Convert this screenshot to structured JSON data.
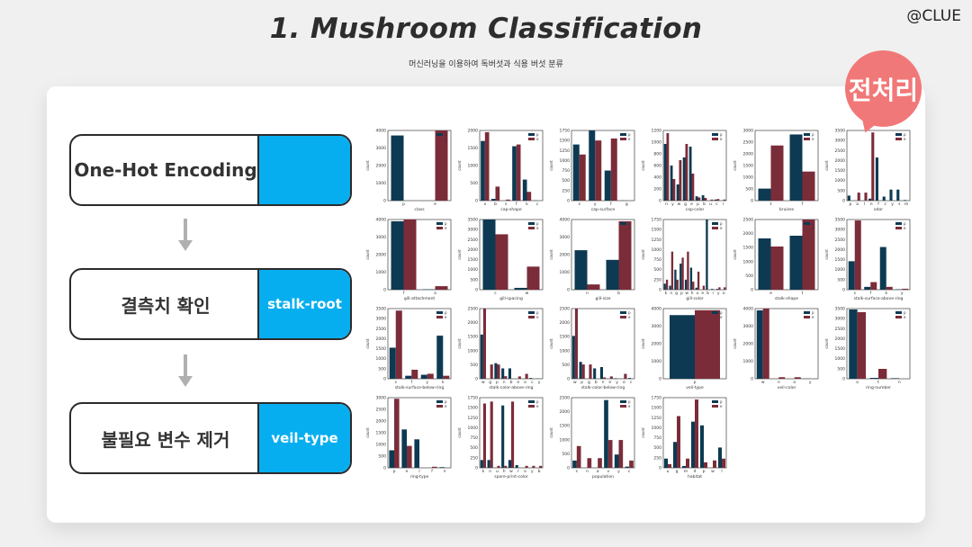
{
  "header": {
    "title": "1.  Mushroom Classification",
    "subtitle": "머신러닝을 이용하여 독버섯과 식용 버섯 분류",
    "brand": "@CLUE"
  },
  "badge": {
    "label": "전처리",
    "color": "#f17878"
  },
  "steps": [
    {
      "label": "One-Hot Encoding",
      "tag": ""
    },
    {
      "label": "결측치 확인",
      "tag": "stalk-root"
    },
    {
      "label": "불필요 변수 제거",
      "tag": "veil-type"
    }
  ],
  "colors": {
    "poisonous": "#0d3a52",
    "edible": "#7b2c39",
    "tag_bg": "#06aeef"
  },
  "legend": {
    "p": "p",
    "e": "e"
  },
  "count_label": "count",
  "plots": [
    {
      "x": "class",
      "cats": [
        "p",
        "e"
      ],
      "p": [
        3900,
        0
      ],
      "e": [
        0,
        4200
      ],
      "max": 4200,
      "yt": [
        "4000",
        "3000",
        "2000",
        "1000",
        "0"
      ]
    },
    {
      "x": "cap-shape",
      "cats": [
        "x",
        "b",
        "s",
        "f",
        "k",
        "c"
      ],
      "p": [
        1700,
        50,
        0,
        1550,
        600,
        5
      ],
      "e": [
        1950,
        400,
        30,
        1600,
        250,
        0
      ],
      "max": 2000,
      "yt": [
        "2000",
        "1500",
        "1000",
        "500",
        "0"
      ]
    },
    {
      "x": "cap-surface",
      "cats": [
        "s",
        "y",
        "f",
        "g"
      ],
      "p": [
        1400,
        1750,
        750,
        4
      ],
      "e": [
        1150,
        1500,
        1550,
        0
      ],
      "max": 1750,
      "yt": [
        "1750",
        "1500",
        "1250",
        "1000",
        "750",
        "500",
        "250",
        "0"
      ]
    },
    {
      "x": "cap-color",
      "cats": [
        "n",
        "y",
        "w",
        "g",
        "e",
        "p",
        "b",
        "u",
        "c",
        "r"
      ],
      "p": [
        1050,
        650,
        300,
        800,
        1000,
        80,
        100,
        0,
        20,
        0
      ],
      "e": [
        1250,
        400,
        750,
        1050,
        500,
        60,
        50,
        20,
        30,
        20
      ],
      "max": 1300,
      "yt": [
        "1200",
        "1000",
        "800",
        "600",
        "400",
        "200",
        "0"
      ]
    },
    {
      "x": "bruises",
      "cats": [
        "t",
        "f"
      ],
      "p": [
        600,
        3300
      ],
      "e": [
        2750,
        1450
      ],
      "max": 3500,
      "yt": [
        "3000",
        "2500",
        "2000",
        "1500",
        "1000",
        "500",
        "0"
      ]
    },
    {
      "x": "odor",
      "cats": [
        "p",
        "a",
        "l",
        "n",
        "f",
        "c",
        "y",
        "s",
        "m"
      ],
      "p": [
        250,
        0,
        0,
        100,
        2150,
        200,
        550,
        550,
        30
      ],
      "e": [
        0,
        400,
        400,
        3400,
        0,
        0,
        0,
        0,
        0
      ],
      "max": 3500,
      "yt": [
        "3500",
        "3000",
        "2500",
        "2000",
        "1500",
        "1000",
        "500",
        "0"
      ]
    },
    {
      "x": "gill-attachment",
      "cats": [
        "f",
        "a"
      ],
      "p": [
        3900,
        20
      ],
      "e": [
        4000,
        200
      ],
      "max": 4000,
      "yt": [
        "4000",
        "3000",
        "2000",
        "1000",
        "0"
      ]
    },
    {
      "x": "gill-spacing",
      "cats": [
        "c",
        "w"
      ],
      "p": [
        3800,
        100
      ],
      "e": [
        3000,
        1250
      ],
      "max": 3800,
      "yt": [
        "3500",
        "3000",
        "2500",
        "2000",
        "1500",
        "1000",
        "500",
        "0"
      ]
    },
    {
      "x": "gill-size",
      "cats": [
        "n",
        "b"
      ],
      "p": [
        2250,
        1700
      ],
      "e": [
        300,
        3900
      ],
      "max": 4000,
      "yt": [
        "4000",
        "3000",
        "2000",
        "1000",
        "0"
      ]
    },
    {
      "x": "gill-color",
      "cats": [
        "k",
        "n",
        "g",
        "p",
        "w",
        "h",
        "u",
        "e",
        "b",
        "r",
        "y",
        "o"
      ],
      "p": [
        150,
        100,
        500,
        650,
        250,
        550,
        50,
        0,
        1750,
        20,
        20,
        0
      ],
      "e": [
        250,
        950,
        250,
        800,
        950,
        200,
        450,
        100,
        0,
        0,
        60,
        60
      ],
      "max": 1750,
      "yt": [
        "1750",
        "1500",
        "1250",
        "1000",
        "750",
        "500",
        "250",
        "0"
      ]
    },
    {
      "x": "stalk-shape",
      "cats": [
        "e",
        "t"
      ],
      "p": [
        1900,
        2000
      ],
      "e": [
        1600,
        2600
      ],
      "max": 2600,
      "yt": [
        "2500",
        "2000",
        "1500",
        "1000",
        "500",
        "0"
      ]
    },
    {
      "x": "stalk-surface-above-ring",
      "cats": [
        "s",
        "f",
        "k",
        "y"
      ],
      "p": [
        1500,
        150,
        2250,
        20
      ],
      "e": [
        3650,
        400,
        150,
        50
      ],
      "max": 3700,
      "yt": [
        "3500",
        "3000",
        "2500",
        "2000",
        "1500",
        "1000",
        "500",
        "0"
      ]
    },
    {
      "x": "stalk-surface-below-ring",
      "cats": [
        "s",
        "f",
        "y",
        "k"
      ],
      "p": [
        1550,
        150,
        200,
        2150
      ],
      "e": [
        3400,
        450,
        250,
        150
      ],
      "max": 3500,
      "yt": [
        "3500",
        "3000",
        "2500",
        "2000",
        "1500",
        "1000",
        "500",
        "0"
      ]
    },
    {
      "x": "stalk-color-above-ring",
      "cats": [
        "w",
        "g",
        "p",
        "n",
        "b",
        "e",
        "o",
        "c",
        "y"
      ],
      "p": [
        1700,
        0,
        600,
        400,
        400,
        0,
        0,
        30,
        10
      ],
      "e": [
        2700,
        550,
        550,
        100,
        0,
        90,
        190,
        0,
        0
      ],
      "max": 2700,
      "yt": [
        "2500",
        "2000",
        "1500",
        "1000",
        "500",
        "0"
      ]
    },
    {
      "x": "stalk-color-below-ring",
      "cats": [
        "w",
        "p",
        "g",
        "b",
        "n",
        "e",
        "y",
        "o",
        "c"
      ],
      "p": [
        1650,
        650,
        0,
        400,
        450,
        0,
        20,
        0,
        30
      ],
      "e": [
        2700,
        550,
        550,
        0,
        50,
        90,
        0,
        190,
        0
      ],
      "max": 2700,
      "yt": [
        "2500",
        "2000",
        "1500",
        "1000",
        "500",
        "0"
      ]
    },
    {
      "x": "veil-type",
      "cats": [
        "p"
      ],
      "p": [
        3900
      ],
      "e": [
        4200
      ],
      "max": 4300,
      "yt": [
        "4000",
        "3000",
        "2000",
        "1000",
        "0"
      ]
    },
    {
      "x": "veil-color",
      "cats": [
        "w",
        "n",
        "o",
        "y"
      ],
      "p": [
        3900,
        0,
        0,
        10
      ],
      "e": [
        4000,
        90,
        90,
        0
      ],
      "max": 4000,
      "yt": [
        "4000",
        "3000",
        "2000",
        "1000",
        "0"
      ]
    },
    {
      "x": "ring-number",
      "cats": [
        "o",
        "t",
        "n"
      ],
      "p": [
        3850,
        50,
        30
      ],
      "e": [
        3700,
        550,
        0
      ],
      "max": 3900,
      "yt": [
        "3500",
        "3000",
        "2500",
        "2000",
        "1500",
        "1000",
        "500",
        "0"
      ]
    },
    {
      "x": "ring-type",
      "cats": [
        "p",
        "e",
        "l",
        "f",
        "n"
      ],
      "p": [
        800,
        1750,
        1300,
        0,
        30
      ],
      "e": [
        3150,
        1000,
        0,
        50,
        0
      ],
      "max": 3200,
      "yt": [
        "3000",
        "2500",
        "2000",
        "1500",
        "1000",
        "500",
        "0"
      ]
    },
    {
      "x": "spore-print-color",
      "cats": [
        "k",
        "n",
        "u",
        "h",
        "w",
        "r",
        "o",
        "y",
        "b"
      ],
      "p": [
        200,
        200,
        0,
        1600,
        200,
        70,
        0,
        0,
        0
      ],
      "e": [
        1650,
        1700,
        50,
        50,
        1700,
        0,
        50,
        50,
        50
      ],
      "max": 1800,
      "yt": [
        "1750",
        "1500",
        "1250",
        "1000",
        "750",
        "500",
        "250",
        "0"
      ]
    },
    {
      "x": "population",
      "cats": [
        "s",
        "n",
        "a",
        "v",
        "y",
        "c"
      ],
      "p": [
        300,
        0,
        0,
        2800,
        550,
        50
      ],
      "e": [
        900,
        400,
        400,
        1150,
        1150,
        300
      ],
      "max": 2900,
      "yt": [
        "2500",
        "2000",
        "1500",
        "1000",
        "500",
        "0"
      ]
    },
    {
      "x": "habitat",
      "cats": [
        "u",
        "g",
        "m",
        "d",
        "p",
        "w",
        "l"
      ],
      "p": [
        250,
        700,
        50,
        1250,
        1150,
        0,
        550
      ],
      "e": [
        100,
        1400,
        250,
        1850,
        150,
        200,
        250
      ],
      "max": 1900,
      "yt": [
        "1750",
        "1500",
        "1250",
        "1000",
        "750",
        "500",
        "250",
        "0"
      ]
    }
  ]
}
